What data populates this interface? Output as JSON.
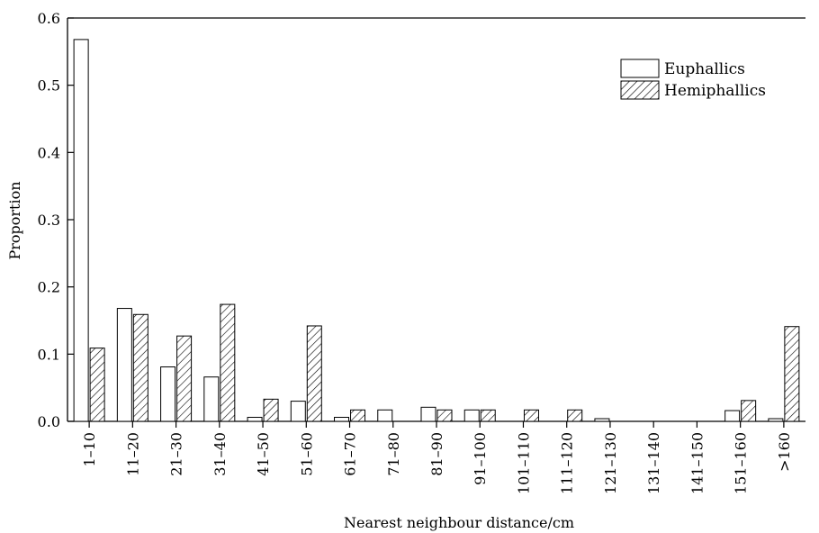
{
  "chart_data": {
    "type": "bar",
    "title": "",
    "xlabel": "Nearest neighbour distance/cm",
    "ylabel": "Proportion",
    "ylim": [
      0,
      0.6
    ],
    "yticks": [
      "0.0",
      "0.1",
      "0.2",
      "0.3",
      "0.4",
      "0.5",
      "0.6"
    ],
    "grid": false,
    "legend_position": "top-right",
    "categories": [
      "1–10",
      "11–20",
      "21–30",
      "31–40",
      "41–50",
      "51–60",
      "61–70",
      "71–80",
      "81–90",
      "91–100",
      "101–110",
      "111–120",
      "121–130",
      "131–140",
      "141–150",
      "151–160",
      ">160"
    ],
    "series": [
      {
        "name": "Euphallics",
        "fill": "open",
        "values": [
          0.568,
          0.168,
          0.081,
          0.066,
          0.006,
          0.03,
          0.006,
          0.017,
          0.021,
          0.017,
          0,
          0,
          0.004,
          0,
          0,
          0.016,
          0.004
        ]
      },
      {
        "name": "Hemiphallics",
        "fill": "hatched",
        "values": [
          0.109,
          0.159,
          0.127,
          0.174,
          0.033,
          0.142,
          0.017,
          0,
          0.017,
          0.017,
          0.017,
          0.017,
          0,
          0,
          0,
          0.031,
          0.141
        ]
      }
    ]
  }
}
